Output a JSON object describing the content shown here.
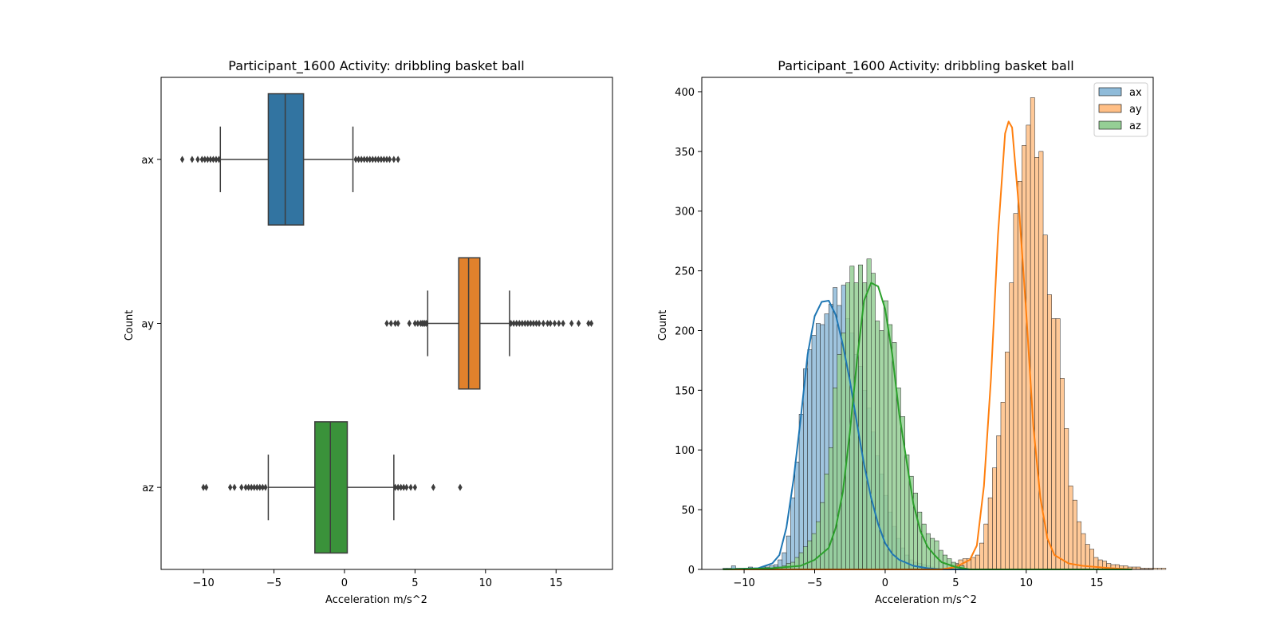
{
  "chart_data": [
    {
      "type": "box",
      "title": "Participant_1600  Activity: dribbling basket ball",
      "xlabel": "Acceleration m/s^2",
      "ylabel": "Count",
      "xlim": [
        -13,
        19
      ],
      "xticks": [
        -10,
        -5,
        0,
        5,
        10,
        15
      ],
      "xtick_labels": [
        "−10",
        "−5",
        "0",
        "5",
        "10",
        "15"
      ],
      "categories": [
        "ax",
        "ay",
        "az"
      ],
      "colors": [
        "#3274a1",
        "#e1812c",
        "#3a923a"
      ],
      "boxes": [
        {
          "name": "ax",
          "whisker_low": -8.8,
          "q1": -5.4,
          "median": -4.2,
          "q3": -2.9,
          "whisker_high": 0.6,
          "outliers": [
            -11.5,
            -10.8,
            -10.4,
            -10.1,
            -9.9,
            -9.7,
            -9.5,
            -9.3,
            -9.1,
            -8.9,
            0.8,
            1.0,
            1.2,
            1.4,
            1.6,
            1.8,
            2.0,
            2.2,
            2.4,
            2.6,
            2.8,
            3.0,
            3.2,
            3.5,
            3.8
          ]
        },
        {
          "name": "ay",
          "whisker_low": 5.9,
          "q1": 8.1,
          "median": 8.8,
          "q3": 9.6,
          "whisker_high": 11.7,
          "outliers": [
            3.0,
            3.3,
            3.6,
            3.8,
            4.6,
            5.0,
            5.2,
            5.4,
            5.5,
            5.6,
            5.7,
            5.8,
            11.8,
            12.0,
            12.2,
            12.4,
            12.6,
            12.8,
            13.0,
            13.2,
            13.4,
            13.6,
            13.8,
            14.1,
            14.4,
            14.6,
            14.9,
            15.2,
            15.5,
            16.1,
            16.6,
            17.3,
            17.5
          ]
        },
        {
          "name": "az",
          "whisker_low": -5.4,
          "q1": -2.1,
          "median": -1.0,
          "q3": 0.2,
          "whisker_high": 3.5,
          "outliers": [
            -10.0,
            -9.8,
            -8.1,
            -7.8,
            -7.3,
            -7.0,
            -6.8,
            -6.6,
            -6.4,
            -6.2,
            -6.0,
            -5.8,
            -5.6,
            3.6,
            3.8,
            4.0,
            4.2,
            4.4,
            4.7,
            5.0,
            6.3,
            8.2
          ]
        }
      ]
    },
    {
      "type": "histogram",
      "title": "Participant_1600  Activity: dribbling basket ball",
      "xlabel": "Acceleration m/s^2",
      "ylabel": "Count",
      "xlim": [
        -13,
        19
      ],
      "ylim": [
        0,
        412
      ],
      "xticks": [
        -10,
        -5,
        0,
        5,
        10,
        15
      ],
      "xtick_labels": [
        "−10",
        "−5",
        "0",
        "5",
        "10",
        "15"
      ],
      "yticks": [
        0,
        50,
        100,
        150,
        200,
        250,
        300,
        350,
        400
      ],
      "legend": "top-right",
      "bin_width": 0.3,
      "series": [
        {
          "name": "ax",
          "color": "#1f77b4",
          "fill": "#8fbbd9",
          "bin_start": -11.5,
          "counts": [
            1,
            1,
            3,
            1,
            1,
            1,
            2,
            1,
            1,
            2,
            2,
            3,
            4,
            8,
            14,
            28,
            60,
            90,
            130,
            168,
            184,
            196,
            206,
            205,
            214,
            222,
            236,
            221,
            238,
            210,
            198,
            180,
            170,
            150,
            135,
            115,
            95,
            80,
            62,
            48,
            36,
            26,
            18,
            12,
            8,
            6,
            5,
            4,
            3,
            2,
            1,
            1,
            1
          ],
          "kde": [
            [
              -11.5,
              0
            ],
            [
              -9,
              1
            ],
            [
              -8,
              5
            ],
            [
              -7.5,
              12
            ],
            [
              -7,
              35
            ],
            [
              -6.5,
              75
            ],
            [
              -6,
              125
            ],
            [
              -5.5,
              180
            ],
            [
              -5,
              212
            ],
            [
              -4.5,
              224
            ],
            [
              -4,
              225
            ],
            [
              -3.5,
              213
            ],
            [
              -3,
              188
            ],
            [
              -2.5,
              158
            ],
            [
              -2,
              122
            ],
            [
              -1.5,
              88
            ],
            [
              -1,
              60
            ],
            [
              -0.5,
              38
            ],
            [
              0,
              22
            ],
            [
              0.5,
              13
            ],
            [
              1,
              8
            ],
            [
              2,
              3
            ],
            [
              3,
              1
            ],
            [
              4,
              0
            ],
            [
              17.5,
              0
            ]
          ]
        },
        {
          "name": "ay",
          "color": "#ff7f0e",
          "fill": "#ffbf86",
          "bin_start": 4.6,
          "counts": [
            2,
            5,
            8,
            9,
            9,
            10,
            12,
            22,
            38,
            60,
            85,
            112,
            140,
            182,
            240,
            298,
            325,
            355,
            372,
            395,
            345,
            350,
            280,
            230,
            210,
            210,
            160,
            118,
            70,
            58,
            40,
            30,
            21,
            17,
            10,
            8,
            7,
            5,
            4,
            4,
            3,
            3,
            2,
            2,
            2,
            1,
            1,
            1,
            1,
            1,
            1
          ],
          "kde": [
            [
              -11.5,
              0
            ],
            [
              4,
              0
            ],
            [
              5,
              2
            ],
            [
              6,
              8
            ],
            [
              6.5,
              20
            ],
            [
              7,
              70
            ],
            [
              7.5,
              160
            ],
            [
              8,
              280
            ],
            [
              8.5,
              365
            ],
            [
              8.75,
              375
            ],
            [
              9,
              370
            ],
            [
              9.5,
              300
            ],
            [
              10,
              215
            ],
            [
              10.5,
              120
            ],
            [
              11,
              60
            ],
            [
              11.5,
              26
            ],
            [
              12,
              12
            ],
            [
              13,
              5
            ],
            [
              14,
              3
            ],
            [
              15,
              2
            ],
            [
              16,
              1
            ],
            [
              17.5,
              0
            ]
          ]
        },
        {
          "name": "az",
          "color": "#2ca02c",
          "fill": "#95cf95",
          "bin_start": -10.0,
          "counts": [
            1,
            1,
            0,
            1,
            1,
            1,
            1,
            2,
            2,
            3,
            5,
            6,
            10,
            14,
            19,
            24,
            30,
            40,
            56,
            80,
            102,
            152,
            180,
            198,
            240,
            254,
            240,
            255,
            240,
            260,
            248,
            208,
            200,
            225,
            205,
            190,
            152,
            128,
            96,
            78,
            64,
            48,
            38,
            30,
            26,
            24,
            16,
            12,
            9,
            6,
            4,
            3
          ],
          "kde": [
            [
              -11.5,
              0
            ],
            [
              -8,
              1
            ],
            [
              -6,
              3
            ],
            [
              -5,
              8
            ],
            [
              -4,
              18
            ],
            [
              -3.5,
              35
            ],
            [
              -3,
              65
            ],
            [
              -2.5,
              115
            ],
            [
              -2,
              175
            ],
            [
              -1.5,
              225
            ],
            [
              -1,
              240
            ],
            [
              -0.5,
              237
            ],
            [
              0,
              218
            ],
            [
              0.5,
              180
            ],
            [
              1,
              130
            ],
            [
              1.5,
              92
            ],
            [
              2,
              55
            ],
            [
              2.5,
              32
            ],
            [
              3,
              19
            ],
            [
              3.5,
              12
            ],
            [
              4,
              6
            ],
            [
              5,
              2
            ],
            [
              6,
              0
            ],
            [
              17.5,
              0
            ]
          ]
        }
      ]
    }
  ]
}
